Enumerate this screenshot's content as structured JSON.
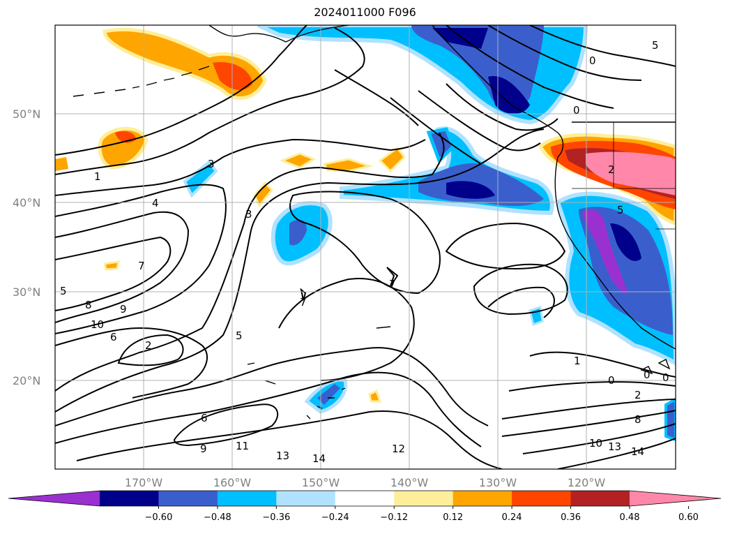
{
  "title": "2024011000 F096",
  "map": {
    "lat_labels": [
      "50°N",
      "40°N",
      "30°N",
      "20°N"
    ],
    "lon_labels": [
      "170°W",
      "160°W",
      "150°W",
      "140°W",
      "130°W",
      "120°W"
    ],
    "contour_labels": [
      "1",
      "4",
      "3",
      "3",
      "7",
      "7",
      "7",
      "5",
      "8",
      "9",
      "10",
      "6",
      "2",
      "5",
      "6",
      "9",
      "11",
      "13",
      "14",
      "12",
      "10",
      "13",
      "14",
      "8",
      "2",
      "1",
      "0",
      "0",
      "0",
      "0",
      "0",
      "2",
      "5",
      "5"
    ]
  },
  "colorbar": {
    "tick_labels": [
      "−0.60",
      "−0.48",
      "−0.36",
      "−0.24",
      "−0.12",
      "0.12",
      "0.24",
      "0.36",
      "0.48",
      "0.60"
    ],
    "colors": [
      "#9b30d0",
      "#00008b",
      "#3a5fcd",
      "#00bfff",
      "#b0e2ff",
      "#ffffff",
      "#ffee99",
      "#ffa500",
      "#ff4500",
      "#b22222",
      "#ff88aa"
    ]
  }
}
